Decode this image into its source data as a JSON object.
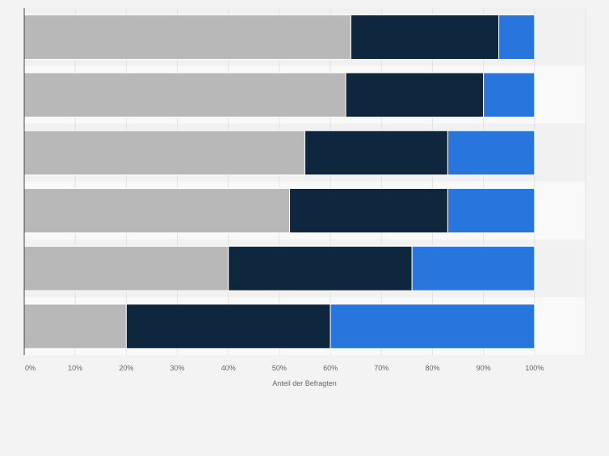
{
  "chart_data": {
    "type": "bar",
    "orientation": "horizontal",
    "stacked": true,
    "title": "",
    "xlabel": "Anteil der Befragten",
    "ylabel": "",
    "xlim": [
      0,
      110
    ],
    "x_ticks": [
      "0%",
      "10%",
      "20%",
      "30%",
      "40%",
      "50%",
      "60%",
      "70%",
      "80%",
      "90%",
      "100%"
    ],
    "categories": [
      "",
      "",
      "",
      "",
      "",
      ""
    ],
    "series": [
      {
        "name": "",
        "color": "#b8b8b8",
        "values": [
          64,
          63,
          55,
          52,
          40,
          20
        ]
      },
      {
        "name": "",
        "color": "#0f263f",
        "values": [
          29,
          27,
          28,
          31,
          36,
          40
        ]
      },
      {
        "name": "",
        "color": "#2876dd",
        "values": [
          7,
          10,
          17,
          17,
          24,
          40
        ]
      }
    ],
    "grid": true,
    "legend": "none"
  },
  "colors": {
    "background": "#f3f3f3",
    "band_light": "#f9f9f9",
    "band_dark": "#f1f1f1",
    "gridline": "#e2e2e2",
    "axis": "#444444",
    "tick_text": "#666666"
  }
}
